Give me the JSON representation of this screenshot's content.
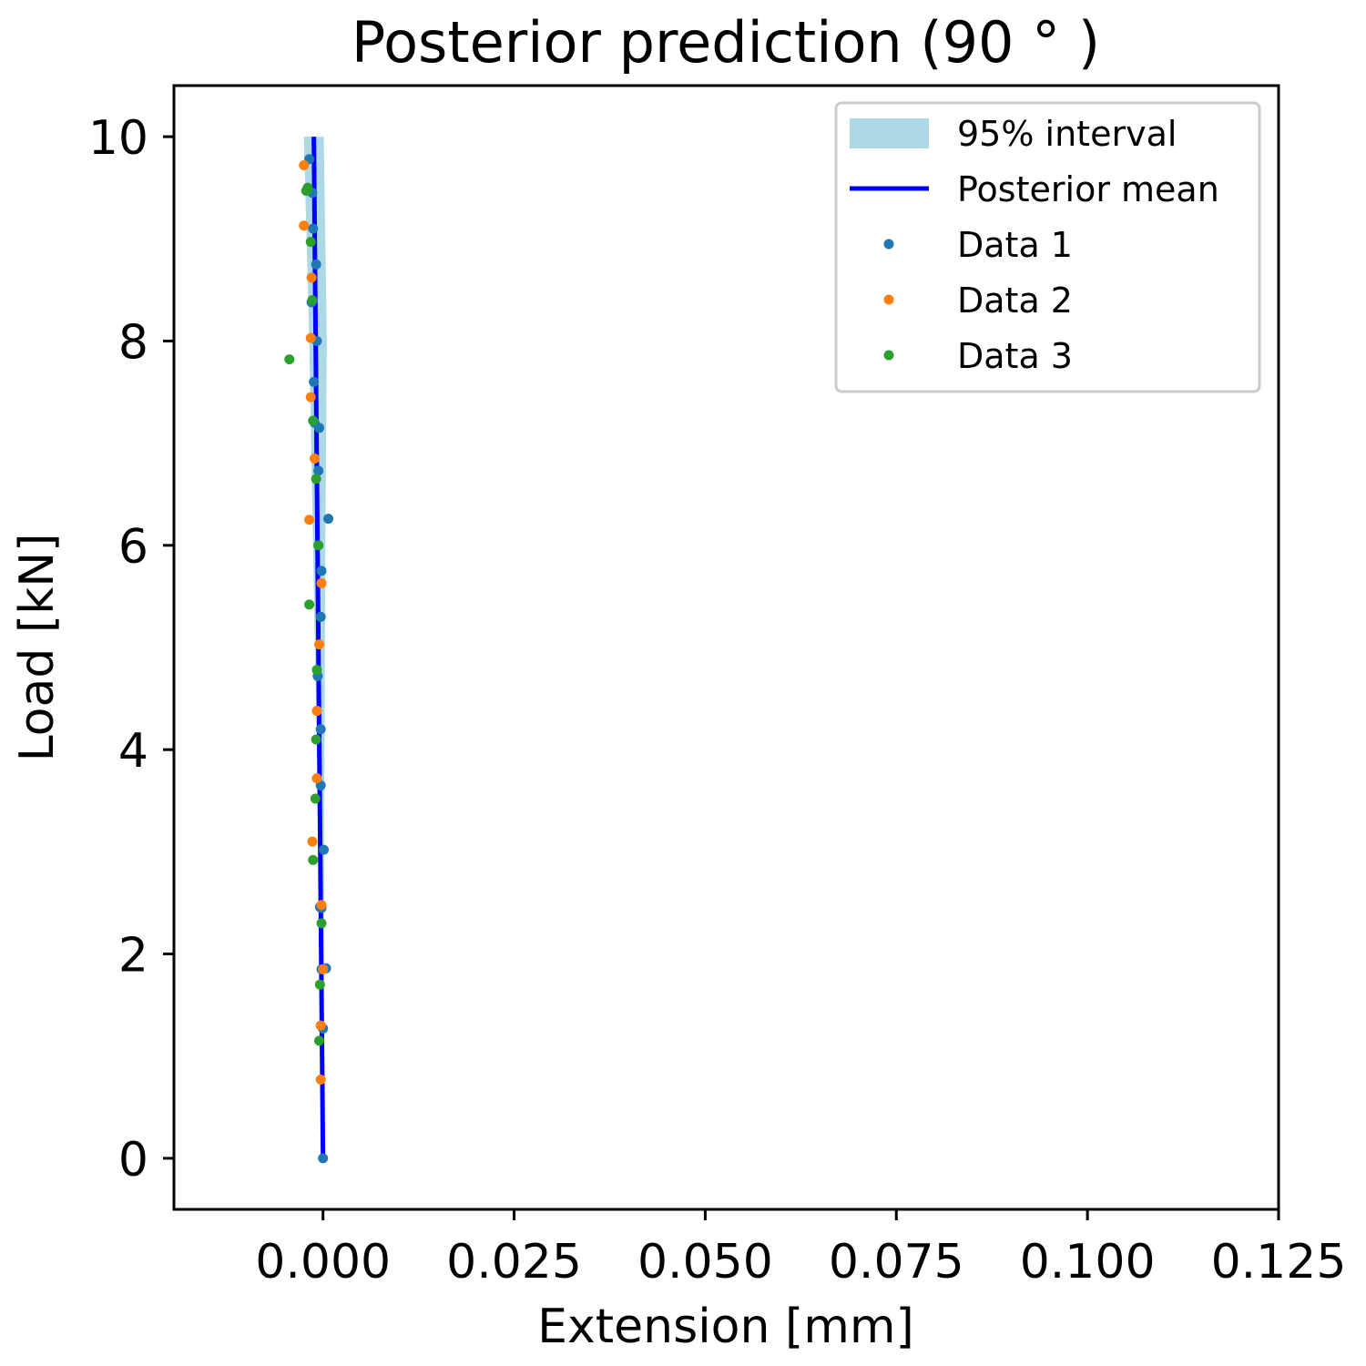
{
  "chart_data": {
    "type": "line",
    "title": "Posterior prediction (90$^\\circ$)",
    "title_display": "Posterior prediction (90 ° )",
    "xlabel": "Extension [mm]",
    "ylabel": "Load [kN]",
    "xlim": [
      -0.0195,
      0.125
    ],
    "ylim": [
      -0.5,
      10.5
    ],
    "xticks": [
      0.0,
      0.025,
      0.05,
      0.075,
      0.1,
      0.125
    ],
    "xtick_labels": [
      "0.000",
      "0.025",
      "0.050",
      "0.075",
      "0.100",
      "0.125"
    ],
    "yticks": [
      0,
      2,
      4,
      6,
      8,
      10
    ],
    "ytick_labels": [
      "0",
      "2",
      "4",
      "6",
      "8",
      "10"
    ],
    "grid": false,
    "legend_position": "top-right",
    "colors": {
      "interval": "#add8e6",
      "mean": "#0000ff",
      "data1": "#1f77b4",
      "data2": "#ff7f0e",
      "data3": "#2ca02c"
    },
    "interval": {
      "name": "95% interval",
      "y": [
        0,
        2,
        4,
        6,
        8,
        10
      ],
      "lower": [
        0.0,
        -0.0004,
        -0.0008,
        -0.0013,
        -0.0018,
        -0.0025
      ],
      "upper": [
        0.0,
        0.0001,
        0.0002,
        0.0003,
        0.0005,
        0.0001
      ]
    },
    "mean": {
      "name": "Posterior mean",
      "x": [
        0.0,
        -0.0002,
        -0.0004,
        -0.0006,
        -0.0008,
        -0.001,
        -0.0012
      ],
      "y": [
        0,
        1.67,
        3.33,
        5.0,
        6.67,
        8.33,
        10.0
      ]
    },
    "series": [
      {
        "name": "Data 1",
        "x": [
          0.0,
          0.0,
          0.0004,
          0.0001,
          -0.0003,
          -0.0007,
          -0.0003,
          0.0007,
          -0.0002,
          -0.0006,
          -0.0005,
          -0.0012,
          -0.0008,
          -0.0015,
          -0.0009,
          -0.0013,
          -0.0014,
          -0.0018,
          -0.0003,
          -0.0002,
          -0.0004,
          -0.0002,
          -0.0011
        ],
        "y": [
          0,
          1.27,
          1.86,
          3.02,
          4.2,
          4.72,
          5.3,
          6.26,
          5.75,
          6.73,
          7.15,
          7.6,
          8.0,
          8.38,
          8.75,
          9.1,
          9.45,
          9.78,
          3.65,
          2.45,
          2.46,
          1.85,
          7.2
        ]
      },
      {
        "name": "Data 2",
        "x": [
          -0.0003,
          -0.0003,
          0.0,
          -0.0002,
          -0.0014,
          -0.0008,
          -0.0008,
          -0.0005,
          -0.0018,
          -0.0011,
          -0.0016,
          -0.0016,
          -0.0015,
          -0.0025,
          -0.0025,
          -0.0002
        ],
        "y": [
          0.77,
          1.3,
          1.85,
          2.48,
          3.1,
          3.72,
          4.38,
          5.03,
          6.25,
          6.85,
          7.45,
          8.03,
          8.62,
          9.13,
          9.72,
          5.63
        ]
      },
      {
        "name": "Data 3",
        "x": [
          -0.0005,
          -0.0004,
          -0.0002,
          -0.0013,
          -0.001,
          -0.0009,
          -0.0008,
          -0.0018,
          -0.0006,
          -0.0009,
          -0.0013,
          -0.0044,
          -0.0014,
          -0.0016,
          -0.0022,
          -0.002
        ],
        "y": [
          1.15,
          1.7,
          2.3,
          2.92,
          3.52,
          4.1,
          4.78,
          5.42,
          6.0,
          6.65,
          7.22,
          7.82,
          8.4,
          8.97,
          9.47,
          9.5
        ]
      }
    ]
  }
}
